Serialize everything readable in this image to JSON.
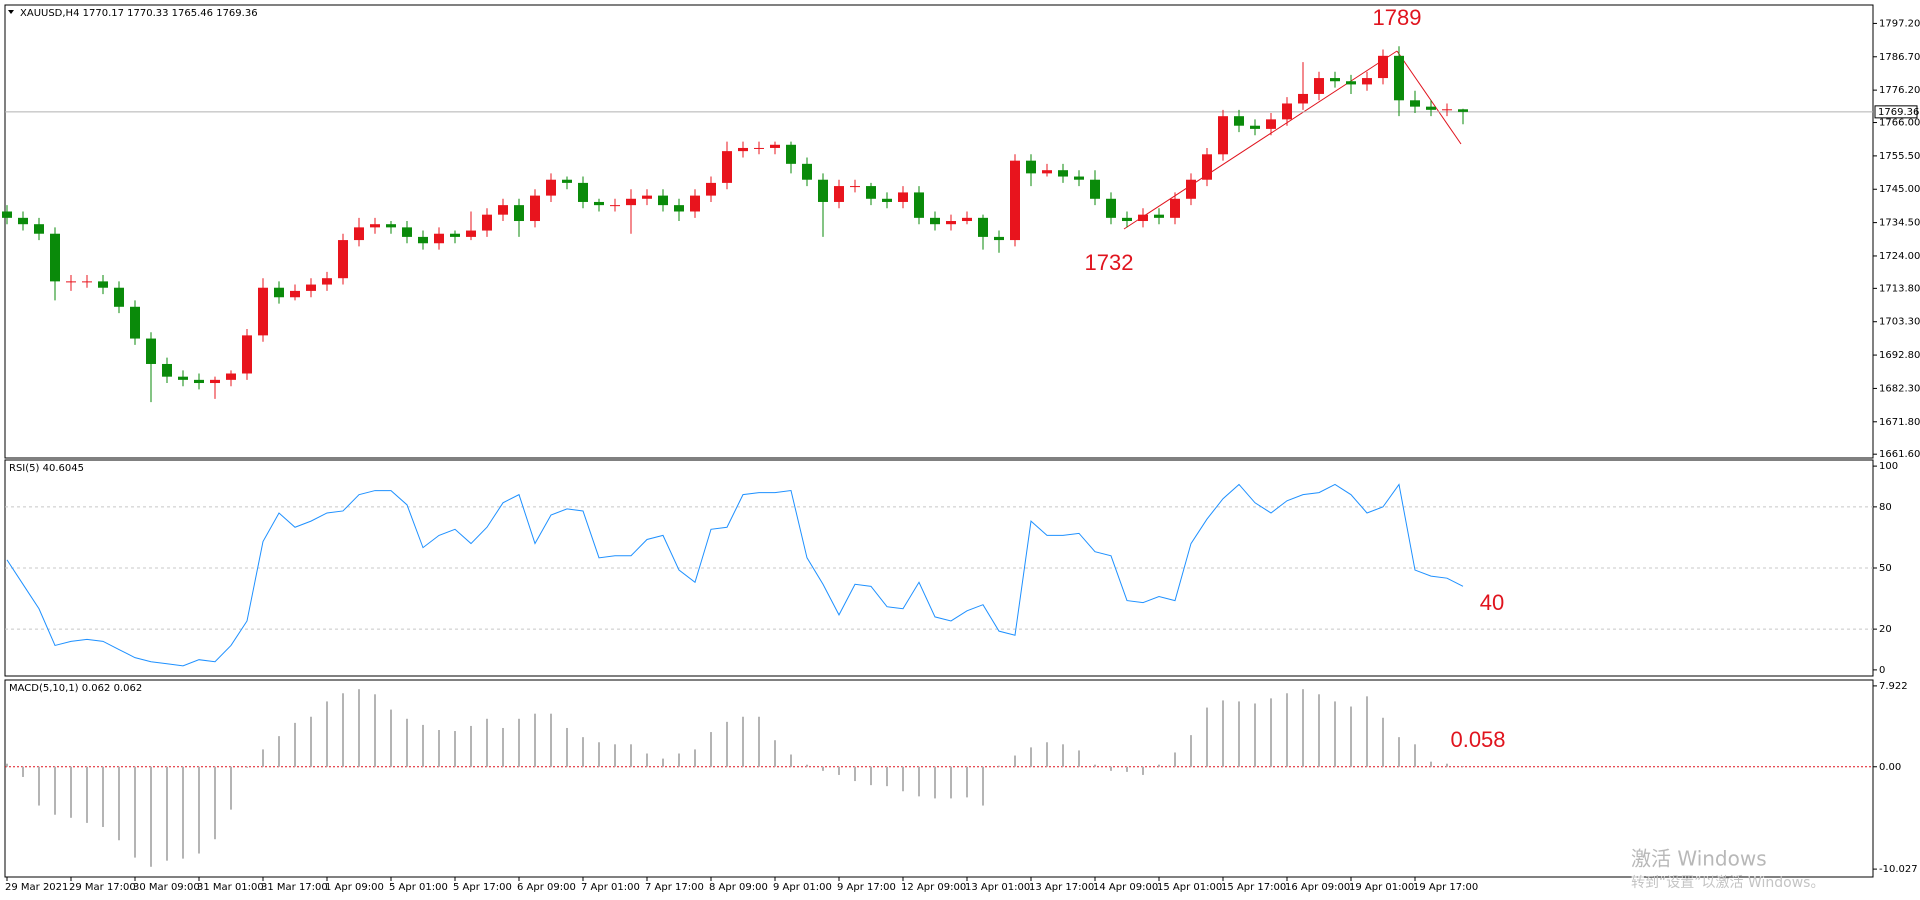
{
  "chart_data": [
    {
      "type": "candlestick",
      "title": "XAUUSD,H4  1770.17 1770.33 1765.46 1769.36",
      "up_color": "#e8141d",
      "down_color": "#0a8a0a",
      "open": [
        1738,
        1736,
        1734,
        1731,
        1716,
        1716,
        1716,
        1714,
        1708,
        1698,
        1690,
        1686,
        1685,
        1684,
        1685,
        1687,
        1699,
        1714,
        1711,
        1713,
        1715,
        1717,
        1729,
        1733,
        1734,
        1733,
        1730,
        1728,
        1731,
        1730,
        1732,
        1737,
        1740,
        1735,
        1743,
        1748,
        1747,
        1741,
        1740,
        1740,
        1742,
        1743,
        1740,
        1738,
        1743,
        1747,
        1757,
        1758,
        1758,
        1759,
        1753,
        1748,
        1741,
        1746,
        1746,
        1742,
        1741,
        1744,
        1736,
        1734,
        1735,
        1736,
        1730,
        1729,
        1754,
        1750,
        1751,
        1749,
        1748,
        1742,
        1736,
        1735,
        1737,
        1736,
        1742,
        1748,
        1756,
        1768,
        1765,
        1764,
        1767,
        1772,
        1775,
        1780,
        1779,
        1778,
        1780,
        1787,
        1773,
        1771,
        1770,
        1770.17
      ],
      "high": [
        1740,
        1738,
        1736,
        1733,
        1718,
        1718,
        1718,
        1716,
        1710,
        1700,
        1692,
        1688,
        1687,
        1686,
        1688,
        1701,
        1717,
        1716,
        1715,
        1717,
        1719,
        1731,
        1736,
        1736,
        1735,
        1735,
        1732,
        1733,
        1732,
        1738,
        1739,
        1742,
        1742,
        1745,
        1750,
        1749,
        1749,
        1742,
        1742,
        1745,
        1745,
        1745,
        1742,
        1745,
        1749,
        1760,
        1760,
        1760,
        1760,
        1760,
        1755,
        1750,
        1748,
        1748,
        1747,
        1744,
        1746,
        1746,
        1738,
        1737,
        1738,
        1737,
        1732,
        1756,
        1756,
        1753,
        1753,
        1751,
        1751,
        1744,
        1738,
        1739,
        1739,
        1744,
        1750,
        1758,
        1770,
        1770,
        1767,
        1769,
        1774,
        1785,
        1782,
        1782,
        1781,
        1782,
        1789,
        1790,
        1776,
        1773,
        1772,
        1770.33
      ],
      "low": [
        1734,
        1732,
        1729,
        1710,
        1713,
        1714,
        1712,
        1706,
        1696,
        1678,
        1684,
        1683,
        1682,
        1679,
        1683,
        1685,
        1697,
        1709,
        1710,
        1711,
        1713,
        1715,
        1727,
        1731,
        1731,
        1728,
        1726,
        1726,
        1728,
        1729,
        1730,
        1735,
        1730,
        1733,
        1741,
        1745,
        1739,
        1738,
        1738,
        1731,
        1740,
        1738,
        1735,
        1736,
        1741,
        1745,
        1755,
        1756,
        1756,
        1750,
        1746,
        1730,
        1739,
        1744,
        1740,
        1739,
        1739,
        1734,
        1732,
        1732,
        1734,
        1726,
        1725,
        1727,
        1746,
        1749,
        1747,
        1746,
        1740,
        1734,
        1733,
        1733,
        1734,
        1734,
        1740,
        1746,
        1754,
        1763,
        1762,
        1762,
        1765,
        1770,
        1773,
        1777,
        1775,
        1776,
        1778,
        1768,
        1769,
        1768,
        1768,
        1765.46
      ],
      "close": [
        1736,
        1734,
        1731,
        1716,
        1716,
        1716,
        1714,
        1708,
        1698,
        1690,
        1686,
        1685,
        1684,
        1685,
        1687,
        1699,
        1714,
        1711,
        1713,
        1715,
        1717,
        1729,
        1733,
        1734,
        1733,
        1730,
        1728,
        1731,
        1730,
        1732,
        1737,
        1740,
        1735,
        1743,
        1748,
        1747,
        1741,
        1740,
        1740,
        1742,
        1743,
        1740,
        1738,
        1743,
        1747,
        1757,
        1758,
        1758,
        1759,
        1753,
        1748,
        1741,
        1746,
        1746,
        1742,
        1741,
        1744,
        1736,
        1734,
        1735,
        1736,
        1730,
        1729,
        1754,
        1750,
        1751,
        1749,
        1748,
        1742,
        1736,
        1735,
        1737,
        1736,
        1742,
        1748,
        1756,
        1768,
        1765,
        1764,
        1767,
        1772,
        1775,
        1780,
        1779,
        1778,
        1780,
        1787,
        1773,
        1771,
        1770,
        1770.17,
        1769.36
      ],
      "last_price": 1769.36,
      "ylim": [
        1660.4,
        1803.0
      ],
      "yticks": [
        {
          "value": 1797.2,
          "label": "1797.20"
        },
        {
          "value": 1786.7,
          "label": "1786.70"
        },
        {
          "value": 1776.2,
          "label": "1776.20"
        },
        {
          "value": 1766,
          "label": "1766.00"
        },
        {
          "value": 1755.5,
          "label": "1755.50"
        },
        {
          "value": 1745,
          "label": "1745.00"
        },
        {
          "value": 1734.5,
          "label": "1734.50"
        },
        {
          "value": 1724,
          "label": "1724.00"
        },
        {
          "value": 1713.8,
          "label": "1713.80"
        },
        {
          "value": 1703.3,
          "label": "1703.30"
        },
        {
          "value": 1692.8,
          "label": "1692.80"
        },
        {
          "value": 1682.3,
          "label": "1682.30"
        },
        {
          "value": 1671.8,
          "label": "1671.80"
        },
        {
          "value": 1661.6,
          "label": "1661.60"
        }
      ],
      "annotations": [
        "1789",
        "1732"
      ]
    },
    {
      "type": "line",
      "title": "RSI(5) 40.6045",
      "color": "#1e90ff",
      "values": [
        54,
        42,
        30,
        12,
        14,
        15,
        14,
        10,
        6,
        4,
        3,
        2,
        5,
        4,
        12,
        24,
        63,
        77,
        70,
        73,
        77,
        78,
        86,
        88,
        88,
        81,
        60,
        66,
        69,
        62,
        70,
        82,
        86,
        62,
        76,
        79,
        78,
        55,
        56,
        56,
        64,
        66,
        49,
        43,
        69,
        70,
        86,
        87,
        87,
        88,
        55,
        42,
        27,
        42,
        41,
        31,
        30,
        43,
        26,
        24,
        29,
        32,
        19,
        17,
        73,
        66,
        66,
        67,
        58,
        56,
        34,
        33,
        36,
        34,
        62,
        74,
        84,
        91,
        82,
        77,
        83,
        86,
        87,
        91,
        86,
        77,
        80,
        91,
        49,
        46,
        45,
        41
      ],
      "ylim": [
        -3,
        103
      ],
      "yticks": [
        0,
        20,
        50,
        80,
        100
      ],
      "levels": [
        20,
        50,
        80
      ],
      "annotations": [
        "40"
      ]
    },
    {
      "type": "bar",
      "title": "MACD(5,10,1) 0.062 0.062",
      "color": "#b4b4b4",
      "zero_line_color": "#e0141e",
      "values": [
        0.3,
        -1.0,
        -3.8,
        -4.7,
        -5.0,
        -5.5,
        -5.9,
        -7.2,
        -8.9,
        -9.8,
        -9.2,
        -9.0,
        -8.5,
        -7.1,
        -4.2,
        -0.1,
        1.7,
        3.0,
        4.3,
        4.9,
        6.4,
        7.2,
        7.6,
        7.1,
        5.6,
        4.7,
        4.1,
        3.6,
        3.5,
        4.0,
        4.7,
        3.8,
        4.7,
        5.2,
        5.2,
        3.8,
        2.9,
        2.4,
        2.2,
        2.2,
        1.3,
        0.8,
        1.3,
        1.7,
        3.4,
        4.4,
        4.9,
        4.9,
        2.6,
        1.2,
        0.2,
        -0.4,
        -0.8,
        -1.4,
        -1.8,
        -1.9,
        -2.4,
        -2.9,
        -3.1,
        -3.1,
        -3.0,
        -3.8,
        0.1,
        1.1,
        1.9,
        2.4,
        2.2,
        1.6,
        0.2,
        -0.4,
        -0.5,
        -0.8,
        0.2,
        1.4,
        3.1,
        5.8,
        6.5,
        6.4,
        6.2,
        6.7,
        7.2,
        7.6,
        7.1,
        6.4,
        5.9,
        6.9,
        4.8,
        2.9,
        2.2,
        0.5,
        0.3,
        0.062
      ],
      "ylim": [
        -10.8,
        8.5
      ],
      "yticks": [
        7.922,
        {
          "value": 0,
          "label": "0.00"
        },
        -10.027
      ],
      "annotations": [
        "0.058"
      ],
      "time_labels": [
        "29 Mar 2021",
        "29 Mar 17:00",
        "30 Mar 09:00",
        "31 Mar 01:00",
        "31 Mar 17:00",
        "1 Apr 09:00",
        "5 Apr 01:00",
        "5 Apr 17:00",
        "6 Apr 09:00",
        "7 Apr 01:00",
        "7 Apr 17:00",
        "8 Apr 09:00",
        "9 Apr 01:00",
        "9 Apr 17:00",
        "12 Apr 09:00",
        "13 Apr 01:00",
        "13 Apr 17:00",
        "14 Apr 09:00",
        "15 Apr 01:00",
        "15 Apr 17:00",
        "16 Apr 09:00",
        "19 Apr 01:00",
        "19 Apr 17:00"
      ]
    }
  ],
  "watermark": {
    "line1": "激活 Windows",
    "line2": "转到“设置”以激活 Windows。"
  }
}
